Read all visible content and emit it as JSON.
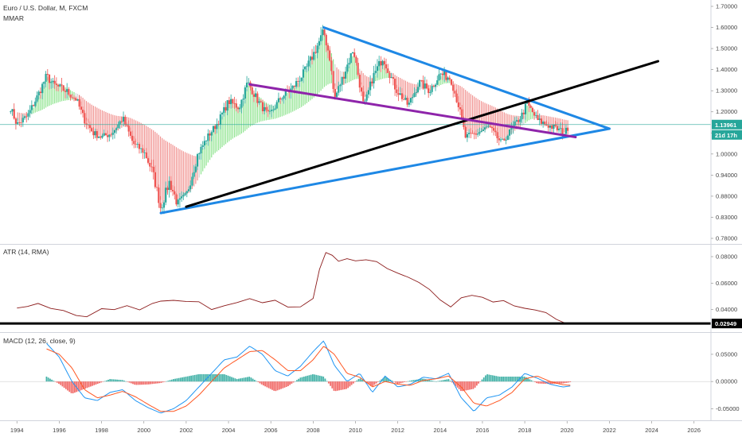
{
  "colors": {
    "up": "#26a69a",
    "down": "#ef5350",
    "ribbon_up": "#32cd32",
    "ribbon_down": "#e53935",
    "ribbon_neutral": "#b0b0b0",
    "price_line": "#26a69a",
    "atr": "#8b1a1a",
    "macd": "#2196f3",
    "signal": "#ff5722",
    "hist_up": "#26a69a",
    "hist_down": "#ef5350",
    "triangle": "#1e88e5",
    "trend_black": "#000000",
    "trend_purple": "#8e24aa",
    "pane_sep": "#d1d4dc",
    "grid": "#eeeeee"
  },
  "chart_data": [
    {
      "type": "candlestick",
      "title": "Euro / U.S. Dollar, M, FXCM",
      "indicator": "MMAR",
      "x_range": [
        1993.2,
        2026.8
      ],
      "ylim": [
        0.77,
        1.72
      ],
      "y_ticks": [
        "1.70000",
        "1.60000",
        "1.50000",
        "1.40000",
        "1.30000",
        "1.20000",
        "1.10000",
        "1.00000",
        "0.94000",
        "0.88000",
        "0.83000",
        "0.78000"
      ],
      "last_price": "1.13961",
      "countdown": "21d 17h",
      "price_path": [
        [
          1993.7,
          1.22
        ],
        [
          1994.0,
          1.14
        ],
        [
          1994.5,
          1.18
        ],
        [
          1995.0,
          1.28
        ],
        [
          1995.4,
          1.37
        ],
        [
          1995.7,
          1.33
        ],
        [
          1996.3,
          1.3
        ],
        [
          1996.8,
          1.26
        ],
        [
          1997.2,
          1.16
        ],
        [
          1997.6,
          1.1
        ],
        [
          1998.0,
          1.08
        ],
        [
          1998.5,
          1.1
        ],
        [
          1999.0,
          1.17
        ],
        [
          1999.5,
          1.05
        ],
        [
          2000.0,
          1.01
        ],
        [
          2000.4,
          0.95
        ],
        [
          2000.8,
          0.85
        ],
        [
          2001.2,
          0.92
        ],
        [
          2001.6,
          0.86
        ],
        [
          2002.0,
          0.88
        ],
        [
          2002.5,
          0.99
        ],
        [
          2003.0,
          1.08
        ],
        [
          2003.5,
          1.15
        ],
        [
          2004.0,
          1.25
        ],
        [
          2004.5,
          1.22
        ],
        [
          2004.9,
          1.34
        ],
        [
          2005.4,
          1.25
        ],
        [
          2005.9,
          1.18
        ],
        [
          2006.5,
          1.27
        ],
        [
          2007.0,
          1.31
        ],
        [
          2007.6,
          1.39
        ],
        [
          2008.0,
          1.47
        ],
        [
          2008.5,
          1.58
        ],
        [
          2008.8,
          1.45
        ],
        [
          2009.0,
          1.26
        ],
        [
          2009.5,
          1.39
        ],
        [
          2009.9,
          1.5
        ],
        [
          2010.4,
          1.22
        ],
        [
          2010.8,
          1.36
        ],
        [
          2011.3,
          1.46
        ],
        [
          2011.9,
          1.31
        ],
        [
          2012.5,
          1.23
        ],
        [
          2013.0,
          1.34
        ],
        [
          2013.5,
          1.3
        ],
        [
          2014.0,
          1.38
        ],
        [
          2014.5,
          1.36
        ],
        [
          2014.9,
          1.22
        ],
        [
          2015.2,
          1.08
        ],
        [
          2015.8,
          1.1
        ],
        [
          2016.3,
          1.13
        ],
        [
          2016.9,
          1.05
        ],
        [
          2017.4,
          1.12
        ],
        [
          2017.9,
          1.19
        ],
        [
          2018.1,
          1.24
        ],
        [
          2018.6,
          1.16
        ],
        [
          2019.0,
          1.14
        ],
        [
          2019.5,
          1.12
        ],
        [
          2019.9,
          1.1
        ],
        [
          2020.1,
          1.14
        ]
      ],
      "trendlines": [
        {
          "color": "triangle",
          "from": [
            2008.5,
            1.6
          ],
          "to": [
            2022.0,
            1.12
          ]
        },
        {
          "color": "triangle",
          "from": [
            2000.8,
            0.84
          ],
          "to": [
            2022.0,
            1.12
          ]
        },
        {
          "color": "trend_black",
          "from": [
            2002.0,
            0.855
          ],
          "to": [
            2024.3,
            1.44
          ]
        },
        {
          "color": "trend_purple",
          "from": [
            2005.0,
            1.33
          ],
          "to": [
            2020.4,
            1.08
          ]
        }
      ]
    },
    {
      "type": "line",
      "title": "ATR (14, RMA)",
      "ylim": [
        0.026,
        0.086
      ],
      "y_ticks": [
        "0.08000",
        "0.06000",
        "0.04000"
      ],
      "last_value": "0.02949",
      "threshold": 0.0295,
      "x": [
        1994.0,
        1994.5,
        1995.0,
        1995.6,
        1996.2,
        1996.8,
        1997.3,
        1998.0,
        1998.6,
        1999.2,
        1999.8,
        2000.4,
        2000.8,
        2001.4,
        2002.0,
        2002.6,
        2003.2,
        2003.8,
        2004.4,
        2005.0,
        2005.6,
        2006.2,
        2006.8,
        2007.4,
        2008.0,
        2008.3,
        2008.6,
        2008.9,
        2009.2,
        2009.6,
        2010.0,
        2010.5,
        2011.0,
        2011.5,
        2012.0,
        2012.5,
        2013.0,
        2013.5,
        2014.0,
        2014.5,
        2015.0,
        2015.5,
        2016.0,
        2016.5,
        2017.0,
        2017.5,
        2018.0,
        2018.5,
        2019.0,
        2019.5,
        2020.0,
        2020.2
      ],
      "values": [
        0.0415,
        0.0425,
        0.0445,
        0.0405,
        0.0395,
        0.036,
        0.035,
        0.041,
        0.0405,
        0.0425,
        0.0395,
        0.0445,
        0.046,
        0.0475,
        0.046,
        0.0455,
        0.0405,
        0.043,
        0.0455,
        0.048,
        0.045,
        0.0465,
        0.0425,
        0.0425,
        0.048,
        0.07,
        0.083,
        0.0815,
        0.0765,
        0.0785,
        0.0765,
        0.0775,
        0.0765,
        0.0715,
        0.068,
        0.0645,
        0.06,
        0.055,
        0.047,
        0.0415,
        0.0485,
        0.0505,
        0.0495,
        0.0455,
        0.0465,
        0.0425,
        0.041,
        0.0395,
        0.0375,
        0.0325,
        0.0295,
        0.0295
      ]
    },
    {
      "type": "line",
      "title": "MACD (12, 26, close, 9)",
      "ylim": [
        -0.064,
        0.082
      ],
      "y_ticks": [
        "0.05000",
        "0.00000",
        "-0.05000"
      ],
      "series": [
        {
          "key": "macd",
          "x": [
            1995.4,
            1996.0,
            1996.6,
            1997.2,
            1997.8,
            1998.4,
            1999.0,
            1999.6,
            2000.2,
            2000.8,
            2001.4,
            2002.0,
            2002.6,
            2003.2,
            2003.8,
            2004.4,
            2005.0,
            2005.6,
            2006.2,
            2006.8,
            2007.4,
            2008.0,
            2008.5,
            2009.0,
            2009.6,
            2010.2,
            2010.8,
            2011.4,
            2012.0,
            2012.6,
            2013.2,
            2013.8,
            2014.4,
            2015.0,
            2015.6,
            2016.2,
            2016.8,
            2017.4,
            2018.0,
            2018.6,
            2019.2,
            2019.8,
            2020.2
          ],
          "values": [
            0.07,
            0.045,
            0.0,
            -0.03,
            -0.035,
            -0.02,
            -0.015,
            -0.035,
            -0.048,
            -0.058,
            -0.05,
            -0.035,
            -0.01,
            0.015,
            0.04,
            0.045,
            0.065,
            0.05,
            0.02,
            0.01,
            0.028,
            0.055,
            0.075,
            0.03,
            0.0,
            0.015,
            -0.02,
            0.01,
            -0.01,
            -0.005,
            0.008,
            0.005,
            0.015,
            -0.03,
            -0.055,
            -0.03,
            -0.025,
            -0.01,
            0.015,
            0.006,
            -0.005,
            -0.01,
            -0.008
          ]
        },
        {
          "key": "signal",
          "x": [
            1995.4,
            1996.0,
            1996.6,
            1997.2,
            1997.8,
            1998.4,
            1999.0,
            1999.6,
            2000.2,
            2000.8,
            2001.4,
            2002.0,
            2002.6,
            2003.2,
            2003.8,
            2004.4,
            2005.0,
            2005.6,
            2006.2,
            2006.8,
            2007.4,
            2008.0,
            2008.5,
            2009.0,
            2009.6,
            2010.2,
            2010.8,
            2011.4,
            2012.0,
            2012.6,
            2013.2,
            2013.8,
            2014.4,
            2015.0,
            2015.6,
            2016.2,
            2016.8,
            2017.4,
            2018.0,
            2018.6,
            2019.2,
            2019.8,
            2020.2
          ],
          "values": [
            0.06,
            0.05,
            0.025,
            -0.015,
            -0.03,
            -0.025,
            -0.018,
            -0.028,
            -0.042,
            -0.055,
            -0.055,
            -0.045,
            -0.025,
            0.0,
            0.025,
            0.04,
            0.055,
            0.057,
            0.04,
            0.02,
            0.02,
            0.04,
            0.065,
            0.05,
            0.015,
            0.008,
            -0.01,
            0.0,
            -0.005,
            -0.007,
            0.002,
            0.005,
            0.01,
            -0.01,
            -0.04,
            -0.045,
            -0.035,
            -0.02,
            0.005,
            0.01,
            0.0,
            -0.006,
            -0.007
          ]
        }
      ]
    }
  ],
  "x_axis": {
    "tick_labels": [
      "1994",
      "1996",
      "1998",
      "2000",
      "2002",
      "2004",
      "2006",
      "2008",
      "2010",
      "2012",
      "2014",
      "2016",
      "2018",
      "2020",
      "2022",
      "2024",
      "2026"
    ],
    "tick_years": [
      1994,
      1996,
      1998,
      2000,
      2002,
      2004,
      2006,
      2008,
      2010,
      2012,
      2014,
      2016,
      2018,
      2020,
      2022,
      2024,
      2026
    ]
  }
}
